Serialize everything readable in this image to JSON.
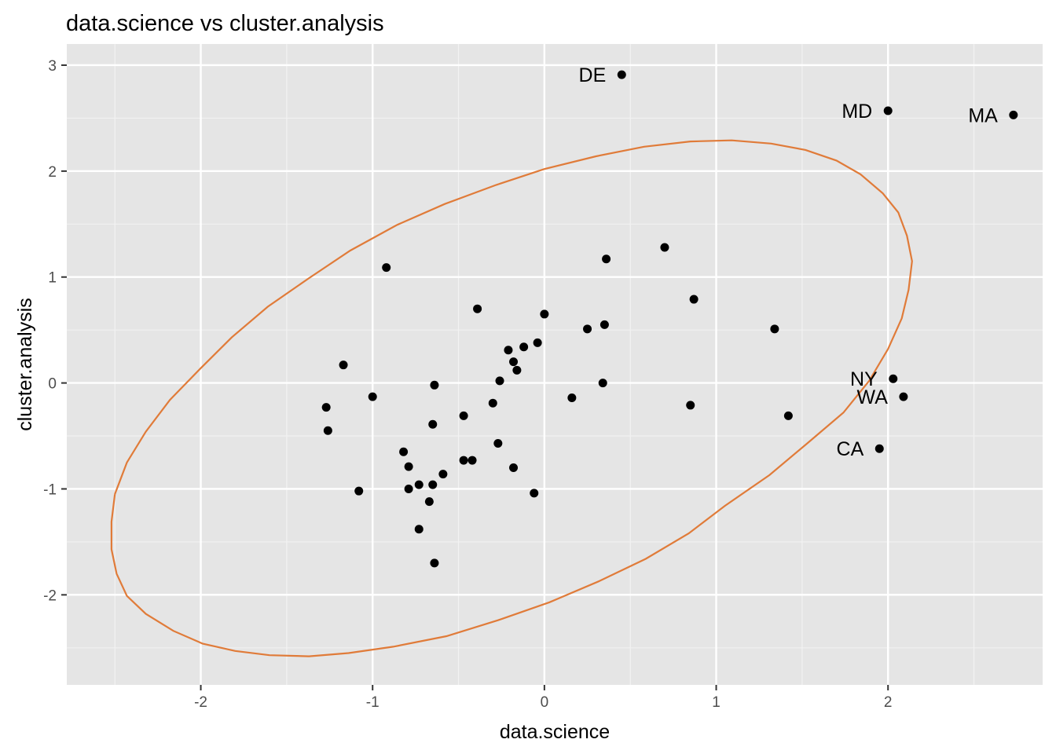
{
  "chart_data": {
    "type": "scatter",
    "title": "data.science vs cluster.analysis",
    "xlabel": "data.science",
    "ylabel": "cluster.analysis",
    "xlim": [
      -2.78,
      2.9
    ],
    "ylim": [
      -2.85,
      3.2
    ],
    "x_ticks": [
      -2,
      -1,
      0,
      1,
      2
    ],
    "y_ticks": [
      -2,
      -1,
      0,
      1,
      2,
      3
    ],
    "x_tick_labels": [
      "-2",
      "-1",
      "0",
      "1",
      "2"
    ],
    "y_tick_labels": [
      "-2",
      "-1",
      "0",
      "1",
      "2",
      "3"
    ],
    "grid": true,
    "point_color": "#000000",
    "ellipse_color": "#E07B39",
    "panel_background": "#E5E5E5",
    "points": [
      {
        "x": 0.45,
        "y": 2.91,
        "label": "DE"
      },
      {
        "x": 2.0,
        "y": 2.57,
        "label": "MD"
      },
      {
        "x": 2.73,
        "y": 2.53,
        "label": "MA"
      },
      {
        "x": 2.03,
        "y": 0.04,
        "label": "NY"
      },
      {
        "x": 2.09,
        "y": -0.13,
        "label": "WA"
      },
      {
        "x": 1.95,
        "y": -0.62,
        "label": "CA"
      },
      {
        "x": -0.92,
        "y": 1.09,
        "label": ""
      },
      {
        "x": 0.7,
        "y": 1.28,
        "label": ""
      },
      {
        "x": 0.36,
        "y": 1.17,
        "label": ""
      },
      {
        "x": 0.87,
        "y": 0.79,
        "label": ""
      },
      {
        "x": -0.39,
        "y": 0.7,
        "label": ""
      },
      {
        "x": 0.0,
        "y": 0.65,
        "label": ""
      },
      {
        "x": 0.35,
        "y": 0.55,
        "label": ""
      },
      {
        "x": 0.25,
        "y": 0.51,
        "label": ""
      },
      {
        "x": 1.34,
        "y": 0.51,
        "label": ""
      },
      {
        "x": -0.04,
        "y": 0.38,
        "label": ""
      },
      {
        "x": -0.12,
        "y": 0.34,
        "label": ""
      },
      {
        "x": -0.21,
        "y": 0.31,
        "label": ""
      },
      {
        "x": -0.18,
        "y": 0.2,
        "label": ""
      },
      {
        "x": -0.16,
        "y": 0.12,
        "label": ""
      },
      {
        "x": -1.17,
        "y": 0.17,
        "label": ""
      },
      {
        "x": -0.26,
        "y": 0.02,
        "label": ""
      },
      {
        "x": -0.64,
        "y": -0.02,
        "label": ""
      },
      {
        "x": 0.34,
        "y": 0.0,
        "label": ""
      },
      {
        "x": -1.0,
        "y": -0.13,
        "label": ""
      },
      {
        "x": 0.16,
        "y": -0.14,
        "label": ""
      },
      {
        "x": -0.3,
        "y": -0.19,
        "label": ""
      },
      {
        "x": 0.85,
        "y": -0.21,
        "label": ""
      },
      {
        "x": -1.27,
        "y": -0.23,
        "label": ""
      },
      {
        "x": -0.47,
        "y": -0.31,
        "label": ""
      },
      {
        "x": 1.42,
        "y": -0.31,
        "label": ""
      },
      {
        "x": -0.65,
        "y": -0.39,
        "label": ""
      },
      {
        "x": -1.26,
        "y": -0.45,
        "label": ""
      },
      {
        "x": -0.27,
        "y": -0.57,
        "label": ""
      },
      {
        "x": -0.82,
        "y": -0.65,
        "label": ""
      },
      {
        "x": -0.47,
        "y": -0.73,
        "label": ""
      },
      {
        "x": -0.42,
        "y": -0.73,
        "label": ""
      },
      {
        "x": -0.79,
        "y": -0.79,
        "label": ""
      },
      {
        "x": -0.18,
        "y": -0.8,
        "label": ""
      },
      {
        "x": -0.59,
        "y": -0.86,
        "label": ""
      },
      {
        "x": -0.73,
        "y": -0.96,
        "label": ""
      },
      {
        "x": -0.65,
        "y": -0.96,
        "label": ""
      },
      {
        "x": -0.79,
        "y": -1.0,
        "label": ""
      },
      {
        "x": -1.08,
        "y": -1.02,
        "label": ""
      },
      {
        "x": -0.06,
        "y": -1.04,
        "label": ""
      },
      {
        "x": -0.67,
        "y": -1.12,
        "label": ""
      },
      {
        "x": -0.73,
        "y": -1.38,
        "label": ""
      },
      {
        "x": -0.64,
        "y": -1.7,
        "label": ""
      }
    ],
    "ellipse": [
      [
        -2.5,
        -1.05
      ],
      [
        -2.43,
        -0.75
      ],
      [
        -2.32,
        -0.46
      ],
      [
        -2.18,
        -0.16
      ],
      [
        -2.0,
        0.14
      ],
      [
        -1.82,
        0.43
      ],
      [
        -1.61,
        0.72
      ],
      [
        -1.37,
        0.99
      ],
      [
        -1.13,
        1.25
      ],
      [
        -0.86,
        1.49
      ],
      [
        -0.58,
        1.69
      ],
      [
        -0.28,
        1.87
      ],
      [
        0.0,
        2.02
      ],
      [
        0.3,
        2.14
      ],
      [
        0.58,
        2.23
      ],
      [
        0.85,
        2.28
      ],
      [
        1.09,
        2.29
      ],
      [
        1.32,
        2.26
      ],
      [
        1.52,
        2.2
      ],
      [
        1.7,
        2.1
      ],
      [
        1.84,
        1.97
      ],
      [
        1.97,
        1.79
      ],
      [
        2.06,
        1.61
      ],
      [
        2.11,
        1.39
      ],
      [
        2.14,
        1.15
      ],
      [
        2.12,
        0.88
      ],
      [
        2.08,
        0.61
      ],
      [
        2.0,
        0.32
      ],
      [
        1.89,
        0.02
      ],
      [
        1.74,
        -0.28
      ],
      [
        1.53,
        -0.57
      ],
      [
        1.31,
        -0.87
      ],
      [
        1.05,
        -1.16
      ],
      [
        0.84,
        -1.42
      ],
      [
        0.59,
        -1.66
      ],
      [
        0.32,
        -1.87
      ],
      [
        0.03,
        -2.07
      ],
      [
        -0.27,
        -2.24
      ],
      [
        -0.57,
        -2.39
      ],
      [
        -0.88,
        -2.49
      ],
      [
        -1.14,
        -2.55
      ],
      [
        -1.37,
        -2.58
      ],
      [
        -1.6,
        -2.57
      ],
      [
        -1.8,
        -2.53
      ],
      [
        -1.99,
        -2.46
      ],
      [
        -2.16,
        -2.34
      ],
      [
        -2.32,
        -2.18
      ],
      [
        -2.43,
        -2.01
      ],
      [
        -2.49,
        -1.8
      ],
      [
        -2.52,
        -1.57
      ],
      [
        -2.52,
        -1.31
      ],
      [
        -2.5,
        -1.05
      ]
    ]
  }
}
